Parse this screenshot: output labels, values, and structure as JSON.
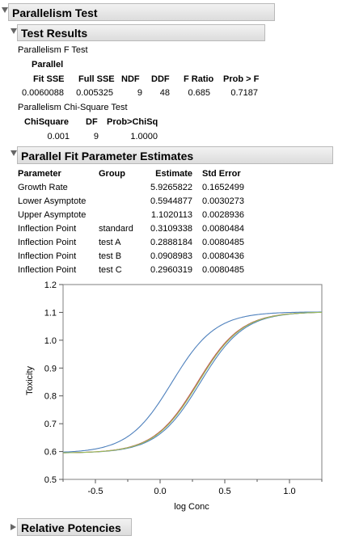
{
  "outline": {
    "title": "Parallelism Test",
    "test_results": {
      "title": "Test Results",
      "f_test": {
        "title": "Parallelism F Test",
        "headers": [
          "Parallel Fit SSE",
          "Full SSE",
          "NDF",
          "DDF",
          "F Ratio",
          "Prob > F"
        ],
        "header_top": "Parallel",
        "header_bottom": "Fit SSE",
        "values": [
          "0.0060088",
          "0.005325",
          "9",
          "48",
          "0.685",
          "0.7187"
        ]
      },
      "chi_test": {
        "title": "Parallelism Chi-Square Test",
        "headers": [
          "ChiSquare",
          "DF",
          "Prob>ChiSq"
        ],
        "values": [
          "0.001",
          "9",
          "1.0000"
        ]
      }
    },
    "estimates": {
      "title": "Parallel Fit Parameter Estimates",
      "headers": [
        "Parameter",
        "Group",
        "Estimate",
        "Std Error"
      ],
      "rows": [
        {
          "parameter": "Growth Rate",
          "group": "",
          "estimate": "5.9265822",
          "std_error": "0.1652499"
        },
        {
          "parameter": "Lower Asymptote",
          "group": "",
          "estimate": "0.5944877",
          "std_error": "0.0030273"
        },
        {
          "parameter": "Upper Asymptote",
          "group": "",
          "estimate": "1.1020113",
          "std_error": "0.0028936"
        },
        {
          "parameter": "Inflection Point",
          "group": "standard",
          "estimate": "0.3109338",
          "std_error": "0.0080484"
        },
        {
          "parameter": "Inflection Point",
          "group": "test A",
          "estimate": "0.2888184",
          "std_error": "0.0080485"
        },
        {
          "parameter": "Inflection Point",
          "group": "test B",
          "estimate": "0.0908983",
          "std_error": "0.0080436"
        },
        {
          "parameter": "Inflection Point",
          "group": "test C",
          "estimate": "0.2960319",
          "std_error": "0.0080485"
        }
      ]
    },
    "relative_potencies": {
      "title": "Relative Potencies"
    }
  },
  "chart_data": {
    "type": "line",
    "title": "",
    "xlabel": "log Conc",
    "ylabel": "Toxicity",
    "xlim": [
      -0.75,
      1.25
    ],
    "ylim": [
      0.5,
      1.2
    ],
    "x_ticks": [
      "-0.5",
      "0.0",
      "0.5",
      "1.0"
    ],
    "x_tick_values": [
      -0.5,
      0,
      0.5,
      1.0
    ],
    "y_ticks": [
      "0.5",
      "0.6",
      "0.7",
      "0.8",
      "0.9",
      "1.0",
      "1.1",
      "1.2"
    ],
    "y_tick_values": [
      0.5,
      0.6,
      0.7,
      0.8,
      0.9,
      1.0,
      1.1,
      1.2
    ],
    "grid": false,
    "model": {
      "growth_rate": 5.9265822,
      "lower": 0.5944877,
      "upper": 1.1020113
    },
    "series": [
      {
        "group": "standard",
        "inflection": 0.3109338,
        "color": "#4f81bd"
      },
      {
        "group": "test A",
        "inflection": 0.2888184,
        "color": "#c0504d"
      },
      {
        "group": "test B",
        "inflection": 0.0908983,
        "color": "#4f81bd"
      },
      {
        "group": "test C",
        "inflection": 0.2960319,
        "color": "#9bbb59"
      }
    ]
  }
}
